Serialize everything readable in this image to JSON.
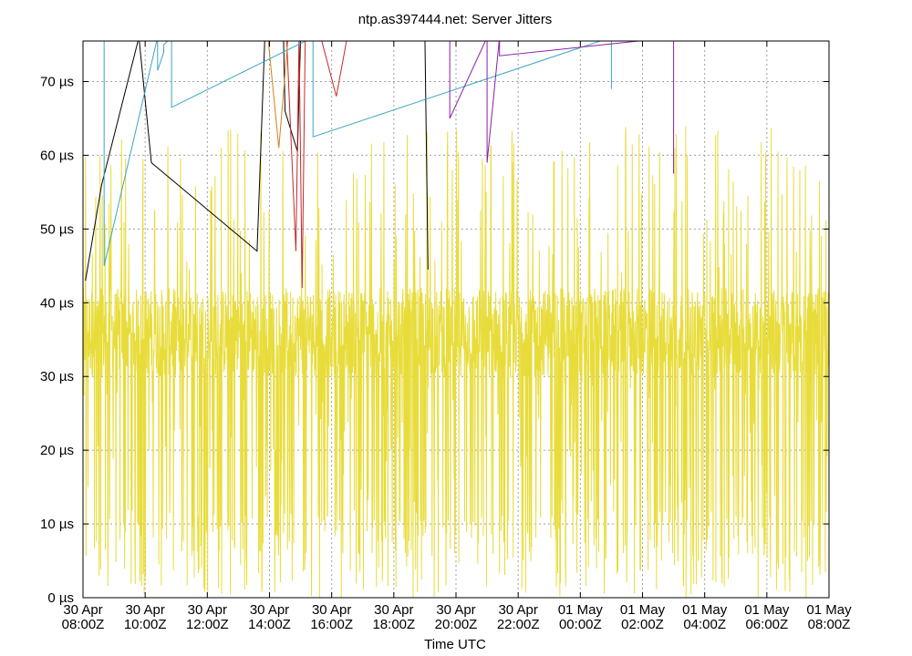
{
  "chart_data": {
    "type": "line",
    "title": "ntp.as397444.net: Server Jitters",
    "xlabel": "Time UTC",
    "ylabel": "",
    "x_range_hours": [
      0,
      24
    ],
    "ylim": [
      0,
      75.5
    ],
    "y_unit": "µs",
    "grid": true,
    "y_ticks": [
      {
        "value": 0,
        "label": "0 µs"
      },
      {
        "value": 10,
        "label": "10 µs"
      },
      {
        "value": 20,
        "label": "20 µs"
      },
      {
        "value": 30,
        "label": "30 µs"
      },
      {
        "value": 40,
        "label": "40 µs"
      },
      {
        "value": 50,
        "label": "50 µs"
      },
      {
        "value": 60,
        "label": "60 µs"
      },
      {
        "value": 70,
        "label": "70 µs"
      }
    ],
    "x_ticks": [
      {
        "hour": 0,
        "date": "30 Apr",
        "time": "08:00Z"
      },
      {
        "hour": 2,
        "date": "30 Apr",
        "time": "10:00Z"
      },
      {
        "hour": 4,
        "date": "30 Apr",
        "time": "12:00Z"
      },
      {
        "hour": 6,
        "date": "30 Apr",
        "time": "14:00Z"
      },
      {
        "hour": 8,
        "date": "30 Apr",
        "time": "16:00Z"
      },
      {
        "hour": 10,
        "date": "30 Apr",
        "time": "18:00Z"
      },
      {
        "hour": 12,
        "date": "30 Apr",
        "time": "20:00Z"
      },
      {
        "hour": 14,
        "date": "30 Apr",
        "time": "22:00Z"
      },
      {
        "hour": 16,
        "date": "01 May",
        "time": "00:00Z"
      },
      {
        "hour": 18,
        "date": "01 May",
        "time": "02:00Z"
      },
      {
        "hour": 20,
        "date": "01 May",
        "time": "04:00Z"
      },
      {
        "hour": 22,
        "date": "01 May",
        "time": "06:00Z"
      },
      {
        "hour": 24,
        "date": "01 May",
        "time": "08:00Z"
      }
    ],
    "main_series": {
      "color": "#e8dc3a",
      "baseline": 36,
      "typical_band": [
        30,
        42
      ],
      "spike_max": 64
    },
    "series": [
      {
        "color": "#000000",
        "points": [
          [
            0.08,
            43
          ],
          [
            0.6,
            56
          ],
          [
            1.8,
            76
          ],
          [
            2.2,
            59
          ],
          [
            5.6,
            47
          ],
          [
            5.85,
            76
          ],
          [
            6.45,
            76
          ],
          [
            6.5,
            66
          ],
          [
            6.9,
            60.5
          ],
          [
            7.0,
            76
          ],
          [
            11.0,
            76
          ],
          [
            11.1,
            44.5
          ]
        ]
      },
      {
        "color": "#c62828",
        "points": [
          [
            6.55,
            76
          ],
          [
            6.85,
            47
          ],
          [
            6.95,
            76
          ],
          [
            7.05,
            42
          ],
          [
            7.15,
            76
          ],
          [
            7.65,
            76
          ],
          [
            8.15,
            68
          ],
          [
            8.5,
            76
          ]
        ]
      },
      {
        "color": "#d47f1e",
        "points": [
          [
            5.95,
            76
          ],
          [
            6.3,
            61
          ],
          [
            6.6,
            76
          ]
        ]
      },
      {
        "color": "#3aa6c6",
        "points": [
          [
            0.68,
            76
          ],
          [
            0.68,
            45
          ],
          [
            2.4,
            76
          ],
          [
            2.4,
            71.5
          ],
          [
            2.6,
            74
          ],
          [
            2.6,
            75
          ],
          [
            2.85,
            76
          ],
          [
            2.85,
            66.5
          ],
          [
            7.4,
            76
          ],
          [
            7.4,
            62.5
          ],
          [
            17.0,
            76
          ],
          [
            17.0,
            69
          ]
        ]
      },
      {
        "color": "#8a1fa8",
        "points": [
          [
            11.8,
            76
          ],
          [
            11.8,
            65
          ],
          [
            13.0,
            76
          ],
          [
            13.0,
            59
          ],
          [
            13.4,
            76
          ],
          [
            13.4,
            73.5
          ],
          [
            19.0,
            76
          ],
          [
            19.0,
            57.5
          ]
        ]
      }
    ]
  }
}
